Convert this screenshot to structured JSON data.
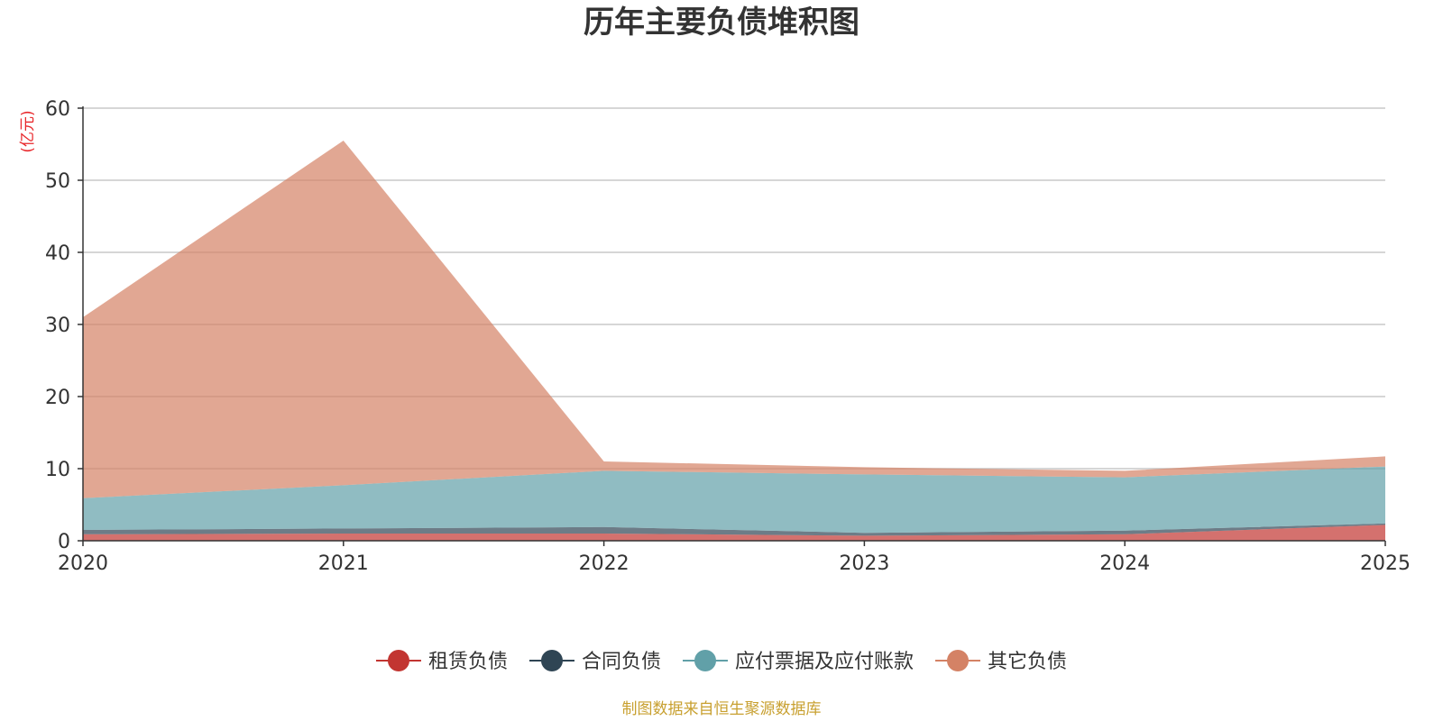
{
  "chart_data": {
    "type": "area",
    "stacked": true,
    "title": "历年主要负债堆积图",
    "unit": "(亿元)",
    "categories": [
      "2020",
      "2021",
      "2022",
      "2023",
      "2024",
      "2025"
    ],
    "ylim": [
      0,
      60
    ],
    "yticks": [
      0,
      10,
      20,
      30,
      40,
      50,
      60
    ],
    "grid": true,
    "legend_position": "bottom",
    "series": [
      {
        "name": "租赁负债",
        "color": "#c23531",
        "values": [
          0.9,
          1.0,
          1.0,
          0.7,
          0.9,
          2.2
        ]
      },
      {
        "name": "合同负债",
        "color": "#2f4554",
        "values": [
          0.6,
          0.7,
          0.9,
          0.4,
          0.5,
          0.2
        ]
      },
      {
        "name": "应付票据及应付账款",
        "color": "#61a0a8",
        "values": [
          4.4,
          6.0,
          7.8,
          8.1,
          7.4,
          7.9
        ]
      },
      {
        "name": "其它负债",
        "color": "#d48265",
        "values": [
          25.1,
          47.8,
          1.3,
          1.0,
          0.9,
          1.4
        ]
      }
    ],
    "source": "制图数据来自恒生聚源数据库"
  }
}
